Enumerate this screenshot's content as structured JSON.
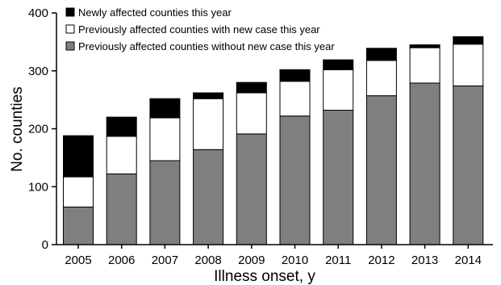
{
  "chart_data": {
    "type": "bar",
    "stacked": true,
    "categories": [
      "2005",
      "2006",
      "2007",
      "2008",
      "2009",
      "2010",
      "2011",
      "2012",
      "2013",
      "2014"
    ],
    "series": [
      {
        "name": "Previously affected counties without new case this year",
        "color": "#7f7f7f",
        "values": [
          65,
          122,
          145,
          164,
          191,
          222,
          232,
          257,
          279,
          274
        ]
      },
      {
        "name": "Previously affected counties with new case this year",
        "color": "#ffffff",
        "values": [
          52,
          65,
          74,
          88,
          71,
          60,
          70,
          61,
          61,
          72
        ]
      },
      {
        "name": "Newly affected counties this year",
        "color": "#000000",
        "values": [
          71,
          33,
          33,
          10,
          18,
          20,
          17,
          21,
          5,
          13
        ]
      }
    ],
    "legend_order": [
      "Newly affected counties this year",
      "Previously affected counties with new case this year",
      "Previously affected counties without new case this year"
    ],
    "xlabel": "Illness onset, y",
    "ylabel": "No. counties",
    "ylim": [
      0,
      400
    ],
    "yticks": [
      0,
      100,
      200,
      300,
      400
    ],
    "grid": false,
    "legend_position": "top-left"
  }
}
